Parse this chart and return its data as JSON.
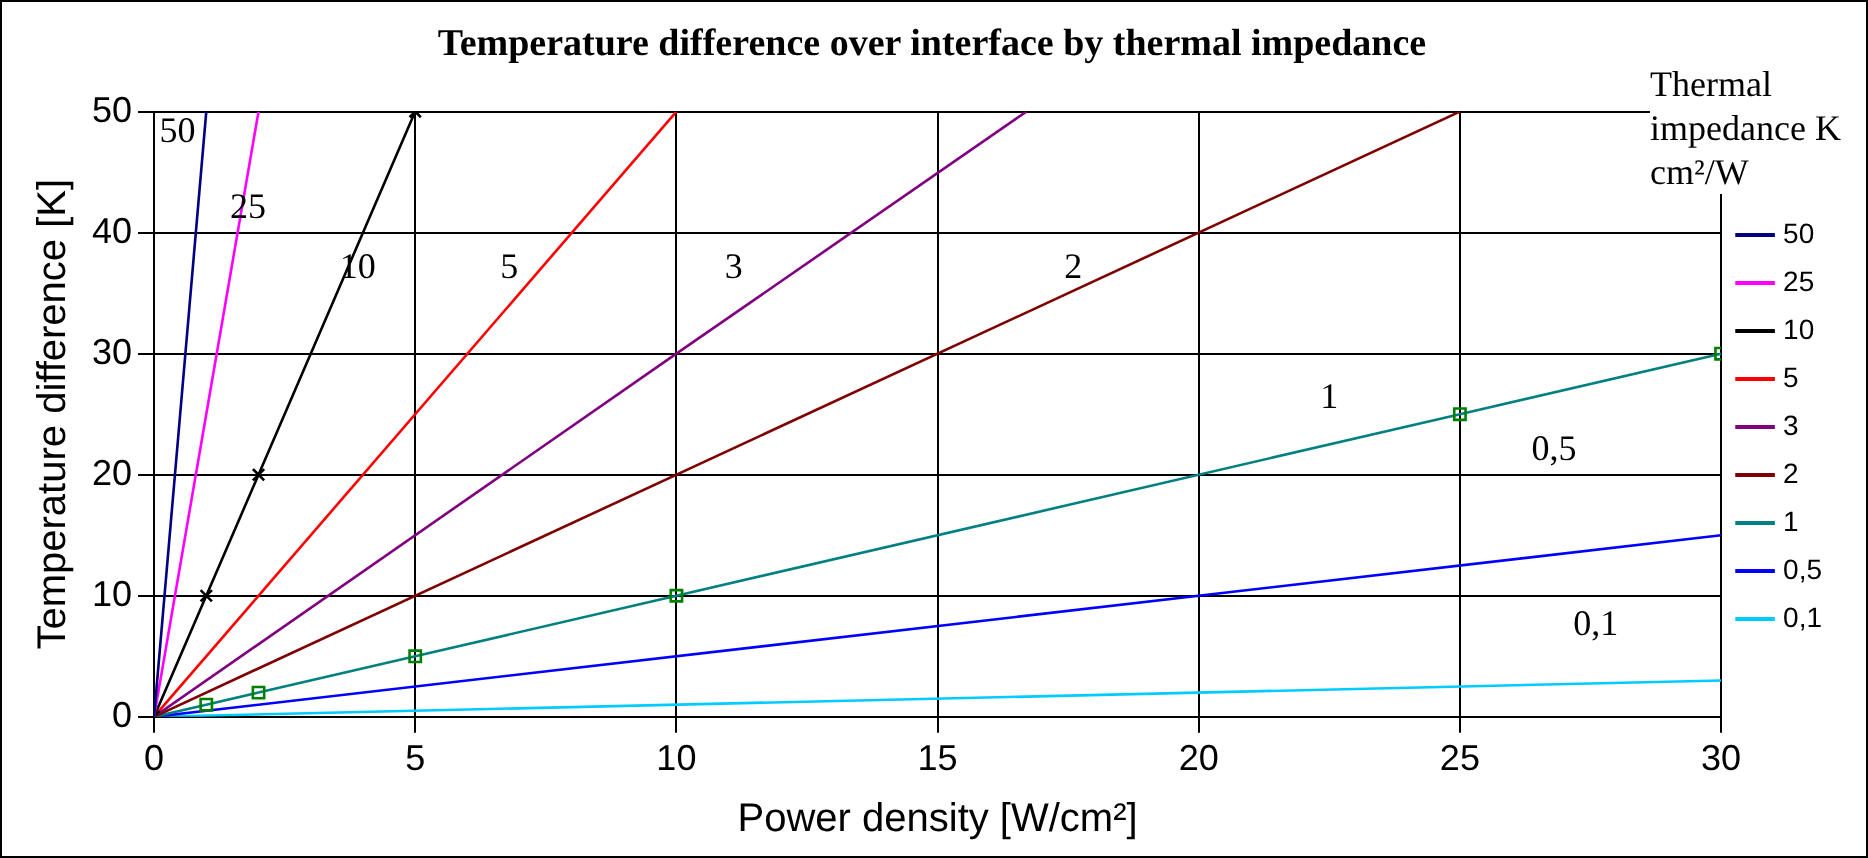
{
  "chart_data": {
    "type": "line",
    "title": "Temperature difference over interface by thermal impedance",
    "xlabel": "Power density [W/cm²]",
    "ylabel": "Temperature difference [K]",
    "legend_title": "Thermal impedance K cm²/W",
    "xlim": [
      0,
      30
    ],
    "xticks": [
      0,
      5,
      10,
      15,
      20,
      25,
      30
    ],
    "ylim": [
      0,
      50
    ],
    "yticks": [
      0,
      10,
      20,
      30,
      40,
      50
    ],
    "grid": true,
    "legend": "right",
    "line_style": "solid",
    "series": [
      {
        "name": "50",
        "color": "#000080",
        "x": [
          0,
          1
        ],
        "values": [
          0,
          50
        ]
      },
      {
        "name": "25",
        "color": "#ff00ff",
        "x": [
          0,
          2
        ],
        "values": [
          0,
          50
        ]
      },
      {
        "name": "10",
        "color": "#000000",
        "x": [
          0,
          1,
          2,
          5
        ],
        "values": [
          0,
          10,
          20,
          50
        ],
        "marker": "cross"
      },
      {
        "name": "5",
        "color": "#ff0000",
        "x": [
          0,
          10
        ],
        "values": [
          0,
          50
        ]
      },
      {
        "name": "3",
        "color": "#800080",
        "x": [
          0,
          10,
          16.7
        ],
        "values": [
          0,
          30,
          50
        ]
      },
      {
        "name": "2",
        "color": "#800000",
        "x": [
          0,
          25
        ],
        "values": [
          0,
          50
        ]
      },
      {
        "name": "1",
        "color": "#008080",
        "x": [
          0,
          1,
          2,
          5,
          10,
          25,
          30
        ],
        "values": [
          0,
          1,
          2,
          5,
          10,
          25,
          30
        ],
        "marker": "square"
      },
      {
        "name": "0,5",
        "color": "#0000ff",
        "x": [
          0,
          30
        ],
        "values": [
          0,
          15
        ]
      },
      {
        "name": "0,1",
        "color": "#00ccff",
        "x": [
          0,
          30
        ],
        "values": [
          0,
          3
        ]
      }
    ]
  }
}
